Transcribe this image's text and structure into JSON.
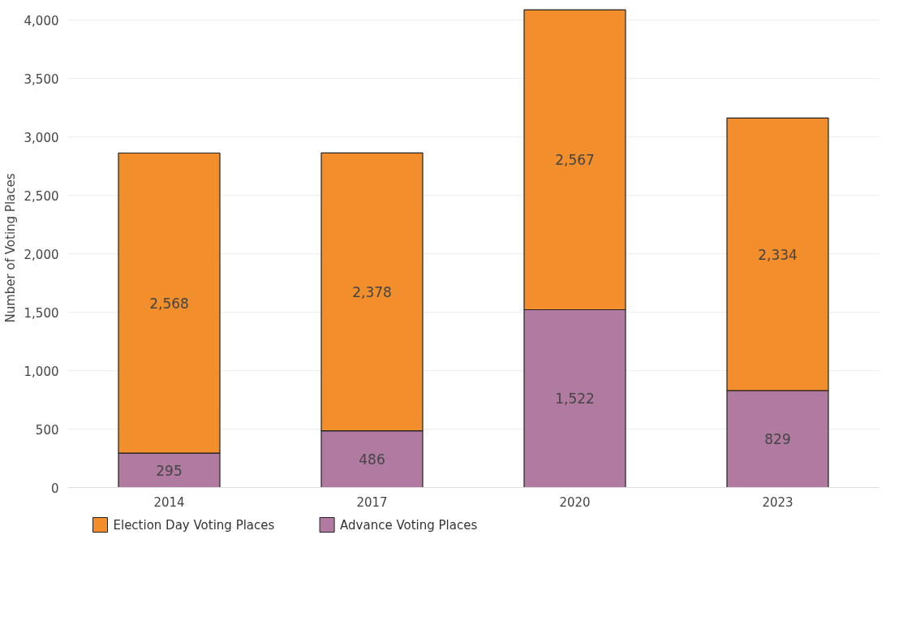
{
  "chart_data": {
    "type": "bar",
    "stacked": true,
    "ylabel": "Number of Voting Places",
    "categories": [
      "2014",
      "2017",
      "2020",
      "2023"
    ],
    "series": [
      {
        "name": "Advance Voting Places",
        "color": "#b07aa1",
        "values": [
          295,
          486,
          1522,
          829
        ],
        "value_labels": [
          "295",
          "486",
          "1,522",
          "829"
        ]
      },
      {
        "name": "Election Day Voting Places",
        "color": "#f28e2b",
        "values": [
          2568,
          2378,
          2567,
          2334
        ],
        "value_labels": [
          "2,568",
          "2,378",
          "2,567",
          "2,334"
        ]
      }
    ],
    "ylim": [
      0,
      4100
    ],
    "yticks": [
      0,
      500,
      {
        "value": 1000,
        "label": "1,000"
      },
      {
        "value": 1500,
        "label": "1,500"
      },
      {
        "value": 2000,
        "label": "2,000"
      },
      {
        "value": 2500,
        "label": "2,500"
      },
      {
        "value": 3000,
        "label": "3,000"
      },
      {
        "value": 3500,
        "label": "3,500"
      },
      {
        "value": 4000,
        "label": "4,000"
      }
    ],
    "grid": "y",
    "legend": "bottom"
  }
}
